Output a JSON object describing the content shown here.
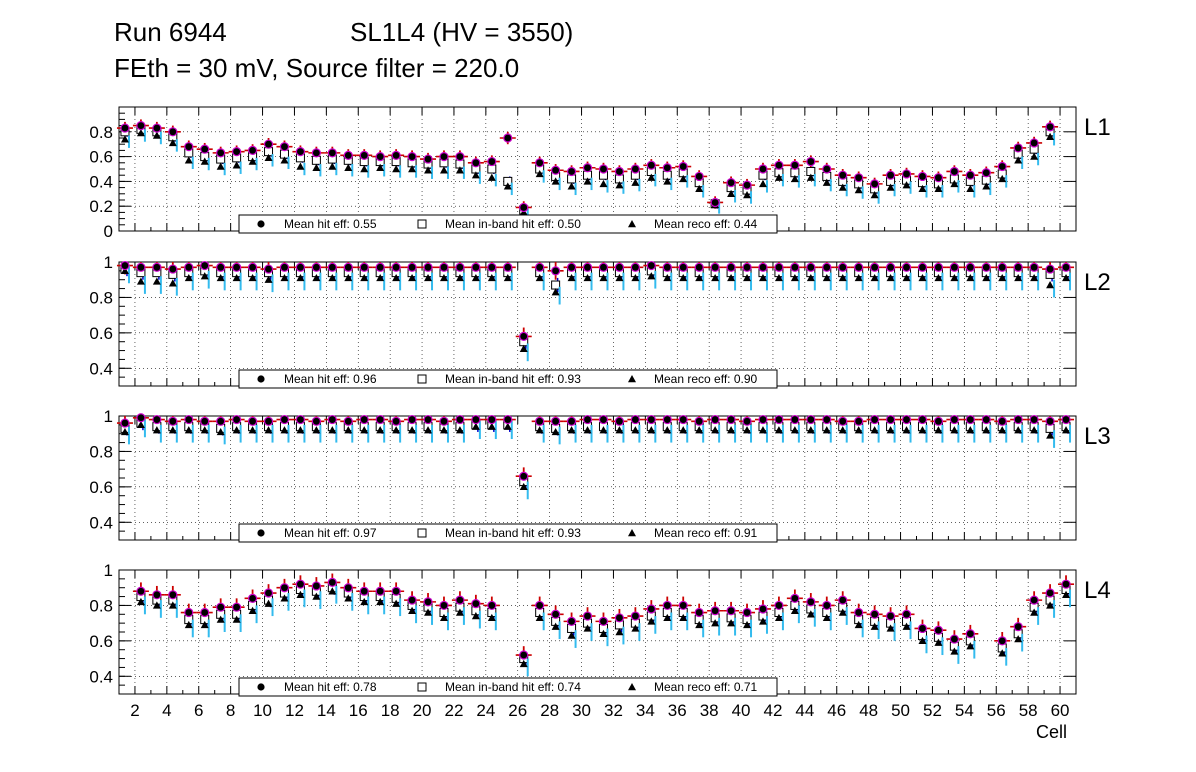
{
  "header": {
    "run": "Run 6944",
    "chamber": "SL1L4 (HV = 3550)",
    "settings": "FEth = 30 mV, Source filter = 220.0"
  },
  "colors": {
    "hit": "#000000",
    "hit_err": "#cc0000",
    "inband": "#000000",
    "inband_err": "#0000cc",
    "reco": "#000000",
    "reco_err": "#33bbee",
    "marker_halo": "#cc00cc"
  },
  "chart_data": [
    {
      "type": "scatter",
      "title": "L1",
      "xlabel": "Cell",
      "ylabel": "",
      "xlim": [
        1,
        61
      ],
      "ylim": [
        0,
        1
      ],
      "yticks": [
        0,
        0.2,
        0.4,
        0.6,
        0.8
      ],
      "grid": true,
      "legend": {
        "position": "bottom-center",
        "items": [
          "Mean hit  eff: 0.55",
          "Mean in-band hit eff: 0.50",
          "Mean reco eff: 0.44"
        ]
      },
      "categories": [
        1,
        2,
        3,
        4,
        5,
        6,
        7,
        8,
        9,
        10,
        11,
        12,
        13,
        14,
        15,
        16,
        17,
        18,
        19,
        20,
        21,
        22,
        23,
        24,
        25,
        26,
        27,
        28,
        29,
        30,
        31,
        32,
        33,
        34,
        35,
        36,
        37,
        38,
        39,
        40,
        41,
        42,
        43,
        44,
        45,
        46,
        47,
        48,
        49,
        50,
        51,
        52,
        53,
        54,
        55,
        56,
        57,
        58,
        59,
        60
      ],
      "series": [
        {
          "name": "Mean hit eff",
          "values": [
            0.83,
            0.85,
            0.83,
            0.8,
            0.68,
            0.66,
            0.63,
            0.64,
            0.65,
            0.7,
            0.68,
            0.64,
            0.63,
            0.63,
            0.61,
            0.61,
            0.6,
            0.61,
            0.6,
            0.58,
            0.6,
            0.6,
            0.55,
            0.56,
            0.75,
            0.19,
            0.55,
            0.49,
            0.48,
            0.51,
            0.5,
            0.48,
            0.5,
            0.53,
            0.51,
            0.52,
            0.44,
            0.23,
            0.39,
            0.37,
            0.5,
            0.53,
            0.53,
            0.56,
            0.5,
            0.45,
            0.43,
            0.38,
            0.45,
            0.46,
            0.44,
            0.43,
            0.48,
            0.45,
            0.47,
            0.52,
            0.67,
            0.71,
            0.84,
            null
          ]
        },
        {
          "name": "Mean in-band hit eff",
          "values": [
            0.8,
            0.82,
            0.8,
            0.76,
            0.63,
            0.6,
            0.58,
            0.59,
            0.6,
            0.64,
            0.62,
            0.59,
            0.57,
            0.58,
            0.57,
            0.56,
            0.56,
            0.56,
            0.55,
            0.54,
            0.55,
            0.54,
            0.5,
            0.5,
            0.4,
            0.17,
            0.5,
            0.44,
            0.42,
            0.45,
            0.45,
            0.42,
            0.45,
            0.48,
            0.45,
            0.47,
            0.39,
            0.22,
            0.35,
            0.33,
            0.45,
            0.47,
            0.47,
            0.48,
            0.44,
            0.4,
            0.38,
            0.34,
            0.4,
            0.41,
            0.39,
            0.38,
            0.42,
            0.4,
            0.41,
            0.46,
            0.62,
            0.66,
            0.8,
            null
          ]
        },
        {
          "name": "Mean reco eff",
          "values": [
            0.74,
            0.79,
            0.77,
            0.71,
            0.57,
            0.56,
            0.52,
            0.53,
            0.56,
            0.59,
            0.57,
            0.52,
            0.51,
            0.52,
            0.51,
            0.5,
            0.51,
            0.5,
            0.5,
            0.49,
            0.49,
            0.49,
            0.45,
            0.43,
            0.36,
            0.15,
            0.46,
            0.4,
            0.36,
            0.4,
            0.38,
            0.37,
            0.39,
            0.43,
            0.4,
            0.42,
            0.34,
            0.21,
            0.3,
            0.29,
            0.38,
            0.43,
            0.42,
            0.43,
            0.39,
            0.35,
            0.33,
            0.29,
            0.35,
            0.37,
            0.34,
            0.34,
            0.38,
            0.34,
            0.36,
            0.42,
            0.57,
            0.6,
            0.76,
            null
          ]
        }
      ]
    },
    {
      "type": "scatter",
      "title": "L2",
      "xlabel": "Cell",
      "ylabel": "",
      "xlim": [
        1,
        61
      ],
      "ylim": [
        0.3,
        1
      ],
      "yticks": [
        0.4,
        0.6,
        0.8,
        1
      ],
      "grid": true,
      "legend": {
        "position": "bottom-center",
        "items": [
          "Mean hit  eff: 0.96",
          "Mean in-band hit eff: 0.93",
          "Mean reco eff: 0.90"
        ]
      },
      "categories": [
        1,
        2,
        3,
        4,
        5,
        6,
        7,
        8,
        9,
        10,
        11,
        12,
        13,
        14,
        15,
        16,
        17,
        18,
        19,
        20,
        21,
        22,
        23,
        24,
        25,
        26,
        27,
        28,
        29,
        30,
        31,
        32,
        33,
        34,
        35,
        36,
        37,
        38,
        39,
        40,
        41,
        42,
        43,
        44,
        45,
        46,
        47,
        48,
        49,
        50,
        51,
        52,
        53,
        54,
        55,
        56,
        57,
        58,
        59,
        60
      ],
      "series": [
        {
          "name": "Mean hit eff",
          "values": [
            0.98,
            0.97,
            0.97,
            0.96,
            0.97,
            0.98,
            0.97,
            0.97,
            0.97,
            0.96,
            0.97,
            0.97,
            0.97,
            0.97,
            0.97,
            0.97,
            0.97,
            0.97,
            0.97,
            0.97,
            0.97,
            0.97,
            0.97,
            0.97,
            0.97,
            0.58,
            0.97,
            0.95,
            0.97,
            0.97,
            0.97,
            0.97,
            0.97,
            0.98,
            0.97,
            0.97,
            0.97,
            0.97,
            0.97,
            0.97,
            0.97,
            0.97,
            0.97,
            0.97,
            0.97,
            0.97,
            0.97,
            0.97,
            0.97,
            0.97,
            0.97,
            0.97,
            0.97,
            0.97,
            0.97,
            0.97,
            0.97,
            0.97,
            0.96,
            0.97
          ]
        },
        {
          "name": "Mean in-band hit eff",
          "values": [
            0.96,
            0.94,
            0.94,
            0.93,
            0.94,
            0.95,
            0.94,
            0.94,
            0.94,
            0.94,
            0.94,
            0.94,
            0.94,
            0.94,
            0.94,
            0.94,
            0.94,
            0.94,
            0.94,
            0.94,
            0.94,
            0.94,
            0.94,
            0.94,
            0.94,
            0.55,
            0.94,
            0.87,
            0.94,
            0.94,
            0.94,
            0.94,
            0.94,
            0.95,
            0.94,
            0.94,
            0.94,
            0.94,
            0.94,
            0.94,
            0.94,
            0.94,
            0.94,
            0.94,
            0.94,
            0.94,
            0.94,
            0.94,
            0.94,
            0.94,
            0.94,
            0.94,
            0.94,
            0.94,
            0.94,
            0.94,
            0.94,
            0.94,
            0.93,
            0.94
          ]
        },
        {
          "name": "Mean reco eff",
          "values": [
            0.95,
            0.89,
            0.89,
            0.88,
            0.91,
            0.92,
            0.91,
            0.91,
            0.91,
            0.9,
            0.91,
            0.91,
            0.91,
            0.91,
            0.91,
            0.91,
            0.91,
            0.91,
            0.91,
            0.91,
            0.91,
            0.91,
            0.91,
            0.91,
            0.91,
            0.51,
            0.91,
            0.83,
            0.91,
            0.91,
            0.91,
            0.91,
            0.91,
            0.92,
            0.91,
            0.91,
            0.91,
            0.91,
            0.91,
            0.91,
            0.91,
            0.91,
            0.91,
            0.91,
            0.91,
            0.91,
            0.91,
            0.91,
            0.91,
            0.91,
            0.91,
            0.91,
            0.91,
            0.91,
            0.91,
            0.91,
            0.91,
            0.91,
            0.87,
            0.91
          ]
        }
      ]
    },
    {
      "type": "scatter",
      "title": "L3",
      "xlabel": "Cell",
      "ylabel": "",
      "xlim": [
        1,
        61
      ],
      "ylim": [
        0.3,
        1
      ],
      "yticks": [
        0.4,
        0.6,
        0.8,
        1
      ],
      "grid": true,
      "legend": {
        "position": "bottom-center",
        "items": [
          "Mean hit  eff: 0.97",
          "Mean in-band hit eff: 0.93",
          "Mean reco eff: 0.91"
        ]
      },
      "categories": [
        1,
        2,
        3,
        4,
        5,
        6,
        7,
        8,
        9,
        10,
        11,
        12,
        13,
        14,
        15,
        16,
        17,
        18,
        19,
        20,
        21,
        22,
        23,
        24,
        25,
        26,
        27,
        28,
        29,
        30,
        31,
        32,
        33,
        34,
        35,
        36,
        37,
        38,
        39,
        40,
        41,
        42,
        43,
        44,
        45,
        46,
        47,
        48,
        49,
        50,
        51,
        52,
        53,
        54,
        55,
        56,
        57,
        58,
        59,
        60
      ],
      "series": [
        {
          "name": "Mean hit eff",
          "values": [
            0.96,
            0.99,
            0.98,
            0.97,
            0.98,
            0.97,
            0.97,
            0.98,
            0.97,
            0.97,
            0.98,
            0.98,
            0.97,
            0.98,
            0.97,
            0.98,
            0.98,
            0.97,
            0.98,
            0.98,
            0.97,
            0.98,
            0.98,
            0.98,
            0.98,
            0.66,
            0.97,
            0.97,
            0.97,
            0.98,
            0.98,
            0.97,
            0.98,
            0.98,
            0.98,
            0.98,
            0.97,
            0.98,
            0.98,
            0.97,
            0.98,
            0.98,
            0.98,
            0.98,
            0.98,
            0.97,
            0.97,
            0.98,
            0.98,
            0.98,
            0.98,
            0.97,
            0.98,
            0.98,
            0.98,
            0.97,
            0.98,
            0.98,
            0.97,
            0.98
          ]
        },
        {
          "name": "Mean in-band hit eff",
          "values": [
            0.93,
            0.96,
            0.94,
            0.94,
            0.94,
            0.94,
            0.93,
            0.94,
            0.94,
            0.94,
            0.94,
            0.94,
            0.94,
            0.94,
            0.94,
            0.94,
            0.94,
            0.94,
            0.94,
            0.94,
            0.94,
            0.94,
            0.95,
            0.95,
            0.95,
            0.63,
            0.94,
            0.93,
            0.94,
            0.94,
            0.94,
            0.94,
            0.94,
            0.94,
            0.94,
            0.94,
            0.94,
            0.94,
            0.94,
            0.94,
            0.94,
            0.94,
            0.94,
            0.94,
            0.94,
            0.94,
            0.94,
            0.94,
            0.94,
            0.94,
            0.94,
            0.94,
            0.94,
            0.94,
            0.94,
            0.94,
            0.94,
            0.94,
            0.93,
            0.94
          ]
        },
        {
          "name": "Mean reco eff",
          "values": [
            0.91,
            0.95,
            0.92,
            0.92,
            0.92,
            0.92,
            0.91,
            0.92,
            0.92,
            0.92,
            0.92,
            0.92,
            0.92,
            0.92,
            0.92,
            0.92,
            0.92,
            0.92,
            0.92,
            0.92,
            0.92,
            0.92,
            0.94,
            0.94,
            0.94,
            0.6,
            0.92,
            0.91,
            0.92,
            0.92,
            0.92,
            0.92,
            0.92,
            0.92,
            0.92,
            0.92,
            0.92,
            0.92,
            0.92,
            0.92,
            0.92,
            0.92,
            0.92,
            0.92,
            0.92,
            0.92,
            0.92,
            0.92,
            0.92,
            0.92,
            0.92,
            0.92,
            0.92,
            0.92,
            0.92,
            0.92,
            0.92,
            0.92,
            0.89,
            0.92
          ]
        }
      ]
    },
    {
      "type": "scatter",
      "title": "L4",
      "xlabel": "Cell",
      "ylabel": "",
      "xlim": [
        1,
        61
      ],
      "ylim": [
        0.3,
        1
      ],
      "yticks": [
        0.4,
        0.6,
        0.8,
        1
      ],
      "xticks": [
        2,
        4,
        6,
        8,
        10,
        12,
        14,
        16,
        18,
        20,
        22,
        24,
        26,
        28,
        30,
        32,
        34,
        36,
        38,
        40,
        42,
        44,
        46,
        48,
        50,
        52,
        54,
        56,
        58,
        60
      ],
      "grid": true,
      "legend": {
        "position": "bottom-center",
        "items": [
          "Mean hit  eff: 0.78",
          "Mean in-band hit eff: 0.74",
          "Mean reco eff: 0.71"
        ]
      },
      "categories": [
        1,
        2,
        3,
        4,
        5,
        6,
        7,
        8,
        9,
        10,
        11,
        12,
        13,
        14,
        15,
        16,
        17,
        18,
        19,
        20,
        21,
        22,
        23,
        24,
        25,
        26,
        27,
        28,
        29,
        30,
        31,
        32,
        33,
        34,
        35,
        36,
        37,
        38,
        39,
        40,
        41,
        42,
        43,
        44,
        45,
        46,
        47,
        48,
        49,
        50,
        51,
        52,
        53,
        54,
        55,
        56,
        57,
        58,
        59,
        60
      ],
      "series": [
        {
          "name": "Mean hit eff",
          "values": [
            null,
            0.88,
            0.86,
            0.86,
            0.76,
            0.76,
            0.79,
            0.79,
            0.84,
            0.87,
            0.9,
            0.92,
            0.91,
            0.93,
            0.9,
            0.88,
            0.88,
            0.88,
            0.83,
            0.82,
            0.8,
            0.83,
            0.81,
            0.8,
            null,
            0.52,
            0.8,
            0.75,
            0.71,
            0.74,
            0.71,
            0.73,
            0.74,
            0.78,
            0.8,
            0.8,
            0.76,
            0.77,
            0.77,
            0.76,
            0.78,
            0.8,
            0.84,
            0.82,
            0.8,
            0.83,
            0.76,
            0.75,
            0.74,
            0.75,
            0.67,
            0.66,
            0.61,
            0.64,
            null,
            0.6,
            0.68,
            0.83,
            0.87,
            0.92
          ]
        },
        {
          "name": "Mean in-band hit eff",
          "values": [
            null,
            0.85,
            0.83,
            0.83,
            0.72,
            0.72,
            0.75,
            0.75,
            0.8,
            0.83,
            0.87,
            0.89,
            0.88,
            0.9,
            0.87,
            0.85,
            0.85,
            0.84,
            0.8,
            0.79,
            0.76,
            0.79,
            0.77,
            0.76,
            null,
            0.5,
            0.76,
            0.71,
            0.67,
            0.7,
            0.67,
            0.69,
            0.7,
            0.74,
            0.76,
            0.76,
            0.72,
            0.73,
            0.73,
            0.72,
            0.74,
            0.76,
            0.8,
            0.78,
            0.76,
            0.79,
            0.72,
            0.71,
            0.7,
            0.71,
            0.63,
            0.62,
            0.57,
            0.6,
            null,
            0.56,
            0.64,
            0.79,
            0.83,
            0.89
          ]
        },
        {
          "name": "Mean reco eff",
          "values": [
            null,
            0.82,
            0.8,
            0.8,
            0.69,
            0.69,
            0.72,
            0.72,
            0.77,
            0.81,
            0.84,
            0.86,
            0.85,
            0.88,
            0.84,
            0.82,
            0.82,
            0.81,
            0.77,
            0.76,
            0.73,
            0.76,
            0.74,
            0.73,
            null,
            0.47,
            0.73,
            0.68,
            0.63,
            0.67,
            0.64,
            0.65,
            0.67,
            0.71,
            0.73,
            0.73,
            0.69,
            0.7,
            0.7,
            0.69,
            0.71,
            0.73,
            0.77,
            0.75,
            0.73,
            0.76,
            0.69,
            0.68,
            0.67,
            0.68,
            0.6,
            0.59,
            0.54,
            0.57,
            null,
            0.53,
            0.61,
            0.76,
            0.8,
            0.86
          ]
        }
      ]
    }
  ]
}
